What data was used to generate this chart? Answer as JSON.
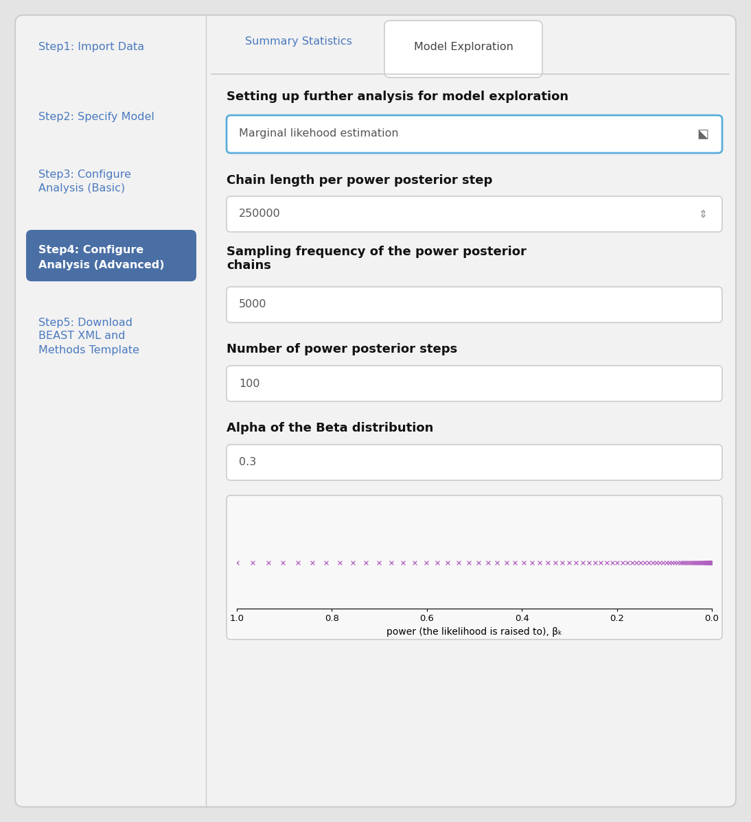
{
  "bg_color": "#e4e4e4",
  "panel_bg": "#f2f2f2",
  "white": "#ffffff",
  "active_step_bg": "#4a6fa5",
  "active_step_text": "#ffffff",
  "inactive_step_text": "#4a7abf",
  "sidebar_steps": [
    "Step1: Import Data",
    "Step2: Specify Model",
    "Step3: Configure\nAnalysis (Basic)",
    "Step4: Configure\nAnalysis (Advanced)",
    "Step5: Download\nBEAST XML and\nMethods Template"
  ],
  "active_step_index": 3,
  "tab_labels": [
    "Summary Statistics",
    "Model Exploration"
  ],
  "active_tab_index": 1,
  "section_title": "Setting up further analysis for model exploration",
  "dropdown_text": "Marginal likehood estimation",
  "dropdown_border": "#5aaedb",
  "field1_label": "Chain length per power posterior step",
  "field1_value": "250000",
  "field2_label": "Sampling frequency of the power posterior\nchains",
  "field2_value": "5000",
  "field3_label": "Number of power posterior steps",
  "field3_value": "100",
  "field4_label": "Alpha of the Beta distribution",
  "field4_value": "0.3",
  "plot_marker_color": "#b060c0",
  "plot_bg": "#f8f8f8",
  "plot_xlabel": "power (the likelihood is raised to), βₖ",
  "plot_xticks": [
    1.0,
    0.8,
    0.6,
    0.4,
    0.2,
    0.0
  ],
  "n_markers": 100,
  "alpha_beta": 0.3
}
